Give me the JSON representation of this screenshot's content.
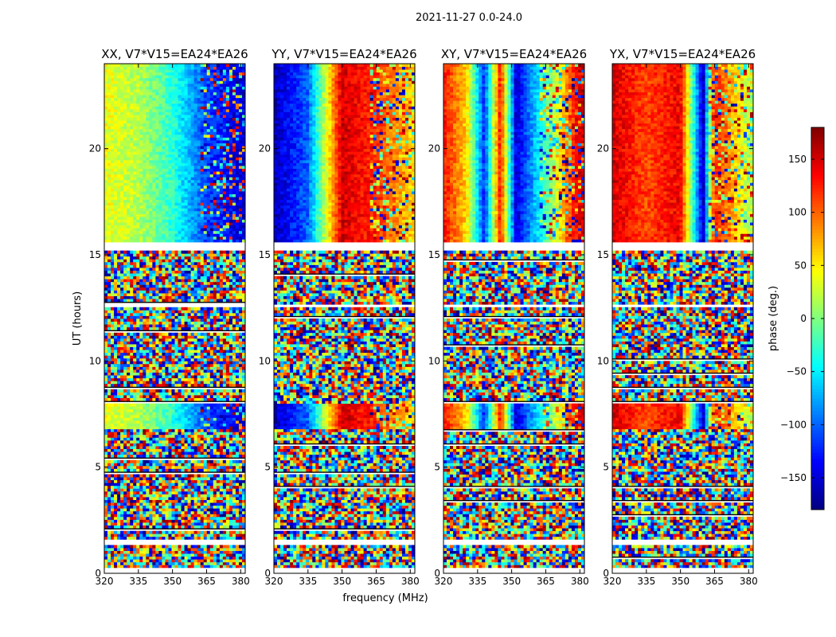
{
  "figure": {
    "suptitle": "2021-11-27 0.0-24.0"
  },
  "chart_data": {
    "type": "heatmap",
    "shared_xlabel": "frequency (MHz)",
    "shared_ylabel": "UT (hours)",
    "xlim": [
      320,
      382
    ],
    "ylim": [
      0,
      24
    ],
    "xticks": [
      320,
      335,
      350,
      365,
      380
    ],
    "yticks": [
      0,
      5,
      10,
      15,
      20
    ],
    "colorbar": {
      "label": "phase (deg.)",
      "colormap": "jet",
      "range": [
        -180,
        180
      ],
      "ticks": [
        -150,
        -100,
        -50,
        0,
        50,
        100,
        150
      ],
      "colors": [
        "#00007f",
        "#0000ff",
        "#007fff",
        "#00ffff",
        "#7fff7f",
        "#ffff00",
        "#ff7f00",
        "#ff0000",
        "#7f0000"
      ]
    },
    "panels": [
      {
        "title": "XX, V7*V15=EA24*EA26",
        "ylabel": "UT (hours)",
        "xlabel": ""
      },
      {
        "title": "YY, V7*V15=EA24*EA26",
        "ylabel": "",
        "xlabel": "frequency (MHz)"
      },
      {
        "title": "XY, V7*V15=EA24*EA26",
        "ylabel": "",
        "xlabel": ""
      },
      {
        "title": "YX, V7*V15=EA24*EA26",
        "ylabel": "",
        "xlabel": ""
      }
    ],
    "structure_approx": {
      "coherent_phase_ut_ranges": [
        [
          6.8,
          8.0
        ],
        [
          15.6,
          24.0
        ]
      ],
      "flagged_blank_ut_ranges": [
        [
          0.0,
          0.3
        ],
        [
          1.4,
          1.6
        ],
        [
          12.5,
          12.7
        ],
        [
          15.2,
          15.6
        ]
      ],
      "XX_phase_vs_freq": [
        [
          320,
          40
        ],
        [
          335,
          20
        ],
        [
          350,
          -30
        ],
        [
          365,
          -110
        ],
        [
          380,
          -150
        ]
      ],
      "YY_phase_vs_freq": [
        [
          320,
          -160
        ],
        [
          335,
          -100
        ],
        [
          350,
          150
        ],
        [
          365,
          120
        ],
        [
          380,
          60
        ]
      ],
      "XY_phase_vs_freq": [
        [
          320,
          130
        ],
        [
          330,
          60
        ],
        [
          338,
          -120
        ],
        [
          345,
          130
        ],
        [
          352,
          -150
        ],
        [
          365,
          -20
        ],
        [
          380,
          150
        ]
      ],
      "YX_phase_vs_freq": [
        [
          320,
          150
        ],
        [
          335,
          110
        ],
        [
          350,
          140
        ],
        [
          360,
          -160
        ],
        [
          365,
          130
        ],
        [
          380,
          20
        ]
      ]
    }
  }
}
